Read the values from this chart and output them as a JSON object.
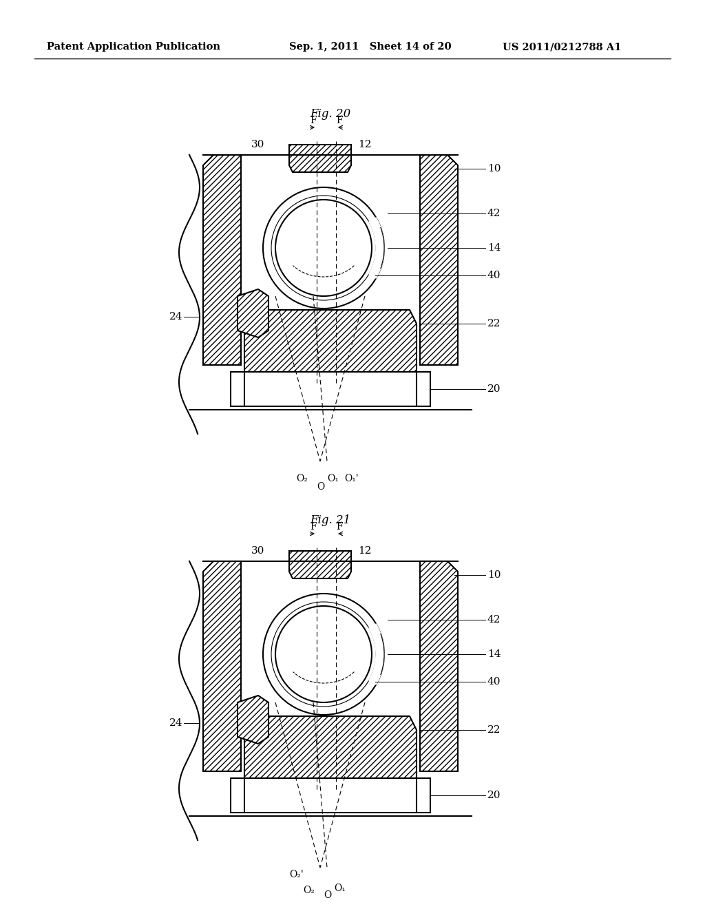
{
  "header_left": "Patent Application Publication",
  "header_mid": "Sep. 1, 2011   Sheet 14 of 20",
  "header_right": "US 2011/0212788 A1",
  "fig20_title": "Fig. 20",
  "fig21_title": "Fig. 21",
  "bg_color": "#ffffff",
  "line_color": "#000000",
  "hatch_color": "#000000",
  "label_fontsize": 11,
  "header_fontsize": 10.5
}
